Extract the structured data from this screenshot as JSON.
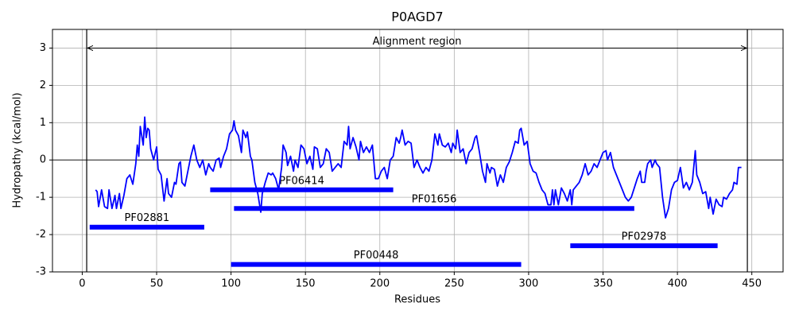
{
  "chart_data": {
    "type": "line",
    "title": "P0AGD7",
    "x_label": "Residues",
    "y_label": "Hydropathy (kcal/mol)",
    "color": "#0000ff",
    "grid": true,
    "xlim": [
      -20,
      471
    ],
    "ylim": [
      -3,
      3.5
    ],
    "xticks": [
      0,
      50,
      100,
      150,
      200,
      250,
      300,
      350,
      400,
      450
    ],
    "yticks": [
      -3,
      -2,
      -1,
      0,
      1,
      2,
      3
    ],
    "hline": 0,
    "annotation": {
      "text": "Alignment region",
      "start": 3,
      "end": 447,
      "y": 3
    },
    "domains": [
      {
        "name": "PF06414",
        "start": 86,
        "end": 209,
        "y": -0.8
      },
      {
        "name": "PF01656",
        "start": 102,
        "end": 371,
        "y": -1.3
      },
      {
        "name": "PF02881",
        "start": 5,
        "end": 82,
        "y": -1.8
      },
      {
        "name": "PF02978",
        "start": 328,
        "end": 427,
        "y": -2.3
      },
      {
        "name": "PF00448",
        "start": 100,
        "end": 295,
        "y": -2.8
      }
    ],
    "x": [
      9,
      10,
      11,
      13,
      15,
      17,
      18,
      20,
      22,
      23,
      25,
      26,
      28,
      30,
      32,
      34,
      36,
      37,
      38,
      39,
      41,
      42,
      43,
      44,
      45,
      46,
      48,
      50,
      51,
      53,
      55,
      57,
      58,
      60,
      62,
      63,
      65,
      66,
      67,
      69,
      71,
      73,
      75,
      77,
      79,
      81,
      83,
      85,
      86,
      88,
      90,
      92,
      93,
      95,
      97,
      99,
      101,
      102,
      103,
      105,
      107,
      108,
      110,
      111,
      113,
      114,
      116,
      118,
      120,
      121,
      123,
      125,
      127,
      128,
      130,
      132,
      134,
      135,
      137,
      138,
      140,
      142,
      143,
      145,
      147,
      149,
      151,
      153,
      155,
      156,
      158,
      160,
      162,
      164,
      166,
      168,
      170,
      172,
      174,
      176,
      178,
      179,
      180,
      182,
      184,
      186,
      187,
      189,
      191,
      193,
      195,
      197,
      199,
      201,
      203,
      205,
      207,
      209,
      211,
      213,
      214,
      215,
      217,
      219,
      221,
      223,
      225,
      227,
      229,
      231,
      233,
      235,
      237,
      239,
      240,
      242,
      244,
      246,
      248,
      249,
      251,
      252,
      254,
      256,
      258,
      260,
      262,
      264,
      265,
      267,
      269,
      271,
      272,
      274,
      275,
      277,
      279,
      281,
      283,
      285,
      287,
      289,
      291,
      293,
      294,
      295,
      297,
      299,
      301,
      303,
      305,
      307,
      309,
      311,
      313,
      315,
      316,
      317,
      318,
      320,
      322,
      324,
      326,
      328,
      329,
      330,
      332,
      334,
      336,
      338,
      340,
      342,
      344,
      346,
      348,
      350,
      352,
      353,
      355,
      357,
      359,
      361,
      363,
      365,
      367,
      369,
      371,
      373,
      375,
      376,
      378,
      379,
      380,
      382,
      383,
      385,
      386,
      388,
      390,
      392,
      394,
      396,
      398,
      400,
      402,
      404,
      406,
      408,
      410,
      412,
      413,
      415,
      417,
      419,
      421,
      422,
      424,
      426,
      428,
      430,
      431,
      433,
      435,
      437,
      438,
      440,
      441,
      443
    ],
    "values": [
      -0.8,
      -0.85,
      -1.25,
      -0.8,
      -1.25,
      -1.3,
      -0.8,
      -1.3,
      -0.95,
      -1.3,
      -0.9,
      -1.3,
      -0.95,
      -0.5,
      -0.4,
      -0.65,
      -0.1,
      0.4,
      0.1,
      0.9,
      0.4,
      1.15,
      0.6,
      0.85,
      0.8,
      0.3,
      0.0,
      0.35,
      -0.25,
      -0.4,
      -1.1,
      -0.5,
      -0.9,
      -1.0,
      -0.6,
      -0.65,
      -0.1,
      -0.05,
      -0.6,
      -0.7,
      -0.3,
      0.1,
      0.4,
      0.0,
      -0.2,
      0.0,
      -0.4,
      -0.1,
      -0.2,
      -0.3,
      0.0,
      0.05,
      -0.2,
      0.1,
      0.3,
      0.7,
      0.8,
      1.05,
      0.8,
      0.65,
      0.2,
      0.8,
      0.6,
      0.75,
      0.1,
      0.0,
      -0.6,
      -0.9,
      -1.4,
      -0.9,
      -0.6,
      -0.35,
      -0.4,
      -0.35,
      -0.5,
      -0.8,
      -0.2,
      0.4,
      0.2,
      -0.15,
      0.1,
      -0.3,
      0.0,
      -0.2,
      0.4,
      0.3,
      -0.1,
      0.1,
      -0.25,
      0.35,
      0.3,
      -0.2,
      -0.1,
      0.3,
      0.2,
      -0.3,
      -0.2,
      -0.1,
      -0.2,
      0.5,
      0.4,
      0.9,
      0.3,
      0.6,
      0.35,
      0.0,
      0.5,
      0.2,
      0.35,
      0.2,
      0.4,
      -0.5,
      -0.5,
      -0.3,
      -0.2,
      -0.5,
      0.0,
      0.1,
      0.6,
      0.45,
      0.6,
      0.8,
      0.4,
      0.5,
      0.45,
      -0.2,
      0.0,
      -0.2,
      -0.35,
      -0.2,
      -0.3,
      0.0,
      0.7,
      0.4,
      0.7,
      0.4,
      0.35,
      0.45,
      0.2,
      0.45,
      0.3,
      0.8,
      0.2,
      0.3,
      -0.1,
      0.2,
      0.3,
      0.6,
      0.65,
      0.2,
      -0.3,
      -0.6,
      -0.1,
      -0.35,
      -0.2,
      -0.25,
      -0.7,
      -0.4,
      -0.6,
      -0.2,
      -0.05,
      0.2,
      0.5,
      0.45,
      0.8,
      0.85,
      0.4,
      0.5,
      -0.1,
      -0.3,
      -0.35,
      -0.6,
      -0.8,
      -0.9,
      -1.2,
      -1.2,
      -0.8,
      -1.2,
      -0.8,
      -1.2,
      -0.75,
      -0.9,
      -1.1,
      -0.8,
      -1.2,
      -0.8,
      -0.7,
      -0.6,
      -0.4,
      -0.1,
      -0.4,
      -0.3,
      -0.1,
      -0.2,
      0.0,
      0.2,
      0.25,
      0.0,
      0.2,
      -0.2,
      -0.4,
      -0.6,
      -0.8,
      -1.0,
      -1.1,
      -1.0,
      -0.75,
      -0.5,
      -0.3,
      -0.6,
      -0.6,
      -0.3,
      -0.1,
      0.0,
      -0.2,
      0.0,
      -0.1,
      -0.2,
      -1.0,
      -1.55,
      -1.3,
      -0.8,
      -0.6,
      -0.55,
      -0.2,
      -0.75,
      -0.6,
      -0.8,
      -0.6,
      0.25,
      -0.4,
      -0.6,
      -0.9,
      -0.85,
      -1.3,
      -1.0,
      -1.45,
      -1.05,
      -1.2,
      -1.25,
      -1.0,
      -1.05,
      -0.9,
      -0.8,
      -0.6,
      -0.65,
      -0.2,
      -0.2
    ]
  }
}
